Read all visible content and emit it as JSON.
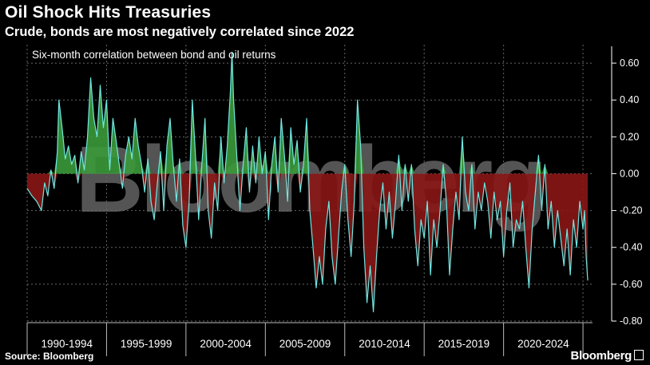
{
  "header": {
    "title": "Oil Shock Hits Treasuries",
    "subtitle": "Crude, bonds are most negatively correlated since 2022"
  },
  "footer": {
    "source": "Source: Bloomberg",
    "brand": "Bloomberg"
  },
  "watermark": "Bloomberg",
  "colors": {
    "line": "#6fe7e2",
    "positive_fill": "#3a9a3a",
    "negative_fill": "#8a1616",
    "grid": "#666666",
    "background": "#000000"
  },
  "chart_data": {
    "type": "area",
    "title": "Oil Shock Hits Treasuries",
    "subtitle": "Crude, bonds are most negatively correlated since 2022",
    "annotation": "Six-month correlation between bond and oil returns",
    "series_name": "Six-month correlation between bond and oil returns",
    "xlabel": "",
    "ylabel": "",
    "x_range": [
      1990.0,
      2025.6
    ],
    "ylim": [
      -0.8,
      0.7
    ],
    "y_ticks": [
      0.6,
      0.4,
      0.2,
      0.0,
      -0.2,
      -0.4,
      -0.6,
      -0.8
    ],
    "y_tick_labels": [
      "0.60",
      "0.40",
      "0.20",
      "0.00",
      "-0.20",
      "-0.40",
      "-0.60",
      "-0.80"
    ],
    "x_tick_labels": [
      "1990-1994",
      "1995-1999",
      "2000-2004",
      "2005-2009",
      "2010-2014",
      "2015-2019",
      "2020-2024"
    ],
    "grid": true,
    "points": [
      [
        1990.0,
        -0.08
      ],
      [
        1990.3,
        -0.12
      ],
      [
        1990.6,
        -0.15
      ],
      [
        1990.9,
        -0.2
      ],
      [
        1991.1,
        -0.05
      ],
      [
        1991.3,
        -0.12
      ],
      [
        1991.5,
        0.02
      ],
      [
        1991.7,
        -0.08
      ],
      [
        1991.9,
        0.12
      ],
      [
        1992.0,
        0.4
      ],
      [
        1992.2,
        0.25
      ],
      [
        1992.4,
        0.08
      ],
      [
        1992.6,
        0.15
      ],
      [
        1992.8,
        0.05
      ],
      [
        1993.0,
        0.1
      ],
      [
        1993.2,
        -0.05
      ],
      [
        1993.4,
        0.12
      ],
      [
        1993.6,
        0.02
      ],
      [
        1993.8,
        0.2
      ],
      [
        1994.0,
        0.52
      ],
      [
        1994.2,
        0.3
      ],
      [
        1994.4,
        0.2
      ],
      [
        1994.6,
        0.48
      ],
      [
        1994.8,
        0.25
      ],
      [
        1995.0,
        0.4
      ],
      [
        1995.2,
        0.02
      ],
      [
        1995.4,
        0.3
      ],
      [
        1995.6,
        0.18
      ],
      [
        1995.8,
        0.05
      ],
      [
        1996.0,
        -0.08
      ],
      [
        1996.2,
        0.1
      ],
      [
        1996.4,
        0.2
      ],
      [
        1996.6,
        0.08
      ],
      [
        1996.8,
        0.3
      ],
      [
        1997.0,
        0.15
      ],
      [
        1997.2,
        0.05
      ],
      [
        1997.4,
        -0.1
      ],
      [
        1997.6,
        0.08
      ],
      [
        1997.8,
        -0.15
      ],
      [
        1998.0,
        -0.25
      ],
      [
        1998.2,
        -0.05
      ],
      [
        1998.4,
        0.12
      ],
      [
        1998.6,
        -0.2
      ],
      [
        1998.8,
        0.15
      ],
      [
        1999.0,
        0.3
      ],
      [
        1999.2,
        0.05
      ],
      [
        1999.4,
        -0.15
      ],
      [
        1999.6,
        0.08
      ],
      [
        1999.8,
        -0.28
      ],
      [
        2000.0,
        -0.4
      ],
      [
        2000.2,
        -0.15
      ],
      [
        2000.4,
        0.4
      ],
      [
        2000.6,
        0.1
      ],
      [
        2000.8,
        -0.25
      ],
      [
        2001.0,
        0.05
      ],
      [
        2001.2,
        0.3
      ],
      [
        2001.4,
        -0.2
      ],
      [
        2001.6,
        -0.35
      ],
      [
        2001.8,
        -0.05
      ],
      [
        2002.0,
        -0.2
      ],
      [
        2002.2,
        0.2
      ],
      [
        2002.4,
        -0.05
      ],
      [
        2002.6,
        0.15
      ],
      [
        2002.8,
        0.45
      ],
      [
        2002.9,
        0.66
      ],
      [
        2003.0,
        0.4
      ],
      [
        2003.2,
        0.1
      ],
      [
        2003.4,
        -0.2
      ],
      [
        2003.6,
        0.05
      ],
      [
        2003.8,
        0.25
      ],
      [
        2004.0,
        -0.1
      ],
      [
        2004.2,
        0.15
      ],
      [
        2004.4,
        -0.05
      ],
      [
        2004.6,
        0.2
      ],
      [
        2004.8,
        0.0
      ],
      [
        2005.0,
        0.12
      ],
      [
        2005.2,
        -0.25
      ],
      [
        2005.4,
        0.05
      ],
      [
        2005.6,
        0.2
      ],
      [
        2005.8,
        -0.1
      ],
      [
        2006.0,
        0.3
      ],
      [
        2006.2,
        0.1
      ],
      [
        2006.4,
        -0.15
      ],
      [
        2006.6,
        0.25
      ],
      [
        2006.8,
        0.05
      ],
      [
        2007.0,
        0.18
      ],
      [
        2007.2,
        -0.1
      ],
      [
        2007.4,
        0.05
      ],
      [
        2007.6,
        0.3
      ],
      [
        2007.8,
        -0.2
      ],
      [
        2008.0,
        -0.4
      ],
      [
        2008.2,
        -0.62
      ],
      [
        2008.4,
        -0.45
      ],
      [
        2008.6,
        -0.6
      ],
      [
        2008.8,
        -0.3
      ],
      [
        2009.0,
        -0.15
      ],
      [
        2009.2,
        -0.45
      ],
      [
        2009.4,
        -0.6
      ],
      [
        2009.6,
        -0.35
      ],
      [
        2009.8,
        -0.1
      ],
      [
        2010.0,
        0.05
      ],
      [
        2010.2,
        -0.25
      ],
      [
        2010.4,
        -0.45
      ],
      [
        2010.6,
        -0.15
      ],
      [
        2010.8,
        0.4
      ],
      [
        2011.0,
        0.15
      ],
      [
        2011.2,
        -0.4
      ],
      [
        2011.4,
        -0.7
      ],
      [
        2011.6,
        -0.5
      ],
      [
        2011.8,
        -0.75
      ],
      [
        2012.0,
        -0.45
      ],
      [
        2012.2,
        -0.2
      ],
      [
        2012.4,
        -0.05
      ],
      [
        2012.6,
        -0.3
      ],
      [
        2012.8,
        -0.1
      ],
      [
        2013.0,
        -0.35
      ],
      [
        2013.2,
        -0.15
      ],
      [
        2013.4,
        0.1
      ],
      [
        2013.6,
        -0.2
      ],
      [
        2013.8,
        0.05
      ],
      [
        2014.0,
        -0.15
      ],
      [
        2014.2,
        0.05
      ],
      [
        2014.4,
        -0.3
      ],
      [
        2014.6,
        -0.5
      ],
      [
        2014.8,
        -0.25
      ],
      [
        2015.0,
        -0.35
      ],
      [
        2015.2,
        -0.15
      ],
      [
        2015.4,
        -0.55
      ],
      [
        2015.6,
        -0.25
      ],
      [
        2015.8,
        -0.4
      ],
      [
        2016.0,
        -0.2
      ],
      [
        2016.2,
        0.05
      ],
      [
        2016.4,
        -0.15
      ],
      [
        2016.6,
        -0.55
      ],
      [
        2016.8,
        -0.3
      ],
      [
        2017.0,
        -0.1
      ],
      [
        2017.2,
        -0.25
      ],
      [
        2017.4,
        0.2
      ],
      [
        2017.6,
        -0.1
      ],
      [
        2017.8,
        -0.2
      ],
      [
        2018.0,
        0.05
      ],
      [
        2018.2,
        -0.3
      ],
      [
        2018.4,
        -0.1
      ],
      [
        2018.6,
        -0.2
      ],
      [
        2018.8,
        -0.05
      ],
      [
        2019.0,
        -0.15
      ],
      [
        2019.2,
        -0.35
      ],
      [
        2019.4,
        -0.1
      ],
      [
        2019.6,
        -0.25
      ],
      [
        2019.8,
        -0.15
      ],
      [
        2020.0,
        -0.45
      ],
      [
        2020.2,
        -0.2
      ],
      [
        2020.4,
        -0.05
      ],
      [
        2020.6,
        -0.4
      ],
      [
        2020.8,
        -0.25
      ],
      [
        2021.0,
        -0.3
      ],
      [
        2021.2,
        -0.15
      ],
      [
        2021.4,
        -0.4
      ],
      [
        2021.6,
        -0.62
      ],
      [
        2021.8,
        -0.3
      ],
      [
        2022.0,
        -0.1
      ],
      [
        2022.2,
        0.1
      ],
      [
        2022.4,
        -0.2
      ],
      [
        2022.6,
        0.05
      ],
      [
        2022.8,
        -0.3
      ],
      [
        2023.0,
        -0.15
      ],
      [
        2023.2,
        -0.4
      ],
      [
        2023.4,
        -0.2
      ],
      [
        2023.6,
        -0.35
      ],
      [
        2023.8,
        -0.5
      ],
      [
        2024.0,
        -0.3
      ],
      [
        2024.2,
        -0.55
      ],
      [
        2024.4,
        -0.25
      ],
      [
        2024.6,
        -0.4
      ],
      [
        2024.8,
        -0.15
      ],
      [
        2025.0,
        -0.3
      ],
      [
        2025.1,
        -0.2
      ],
      [
        2025.2,
        -0.45
      ],
      [
        2025.3,
        -0.58
      ]
    ]
  }
}
